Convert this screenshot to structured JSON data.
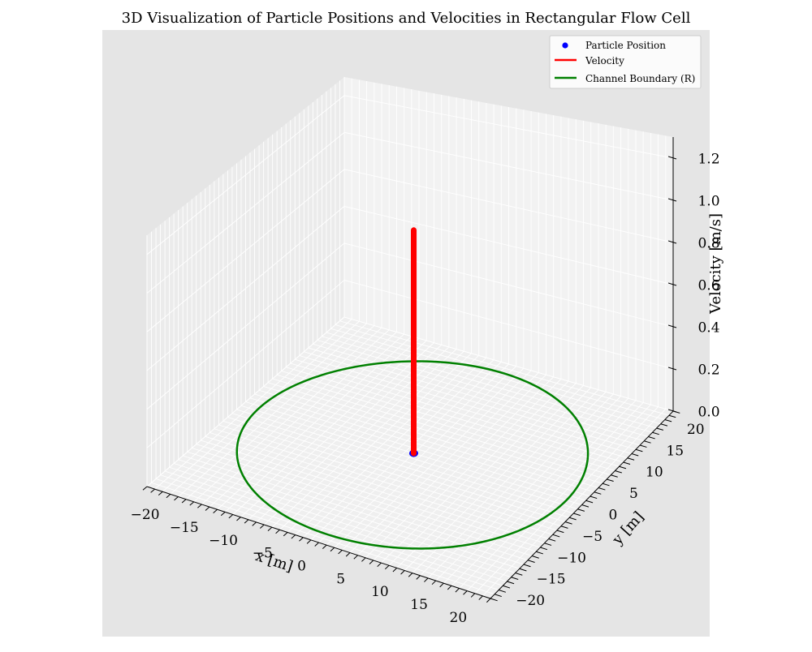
{
  "chart_data": {
    "type": "scatter",
    "projection": "3d",
    "title": "3D Visualization of Particle Positions and Velocities in Rectangular Flow Cell",
    "xlabel": "x [m]",
    "ylabel": "y [m]",
    "zlabel": "Velocity [m/s]",
    "xlim": [
      -22,
      22
    ],
    "ylim": [
      -22,
      22
    ],
    "zlim": [
      0,
      1.3
    ],
    "x_ticks": [
      -20,
      -15,
      -10,
      -5,
      0,
      5,
      10,
      15,
      20
    ],
    "y_ticks": [
      -20,
      -15,
      -10,
      -5,
      0,
      5,
      10,
      15,
      20
    ],
    "z_ticks": [
      0.0,
      0.2,
      0.4,
      0.6,
      0.8,
      1.0,
      1.2
    ],
    "x_tick_labels": [
      "−20",
      "−15",
      "−10",
      "−5",
      "0",
      "5",
      "10",
      "15",
      "20"
    ],
    "y_tick_labels": [
      "−20",
      "−15",
      "−10",
      "−5",
      "0",
      "5",
      "10",
      "15",
      "20"
    ],
    "z_tick_labels": [
      "0.0",
      "0.2",
      "0.4",
      "0.6",
      "0.8",
      "1.0",
      "1.2"
    ],
    "grid": true,
    "legend_position": "top-right",
    "series": [
      {
        "name": "Particle Position",
        "kind": "scatter",
        "color": "#0000ff",
        "points": [
          {
            "x": 0,
            "y": 0,
            "z": 0
          }
        ]
      },
      {
        "name": "Velocity",
        "kind": "line",
        "color": "#ff0000",
        "points": [
          {
            "x": 0,
            "y": 0,
            "z": 0
          },
          {
            "x": 0,
            "y": 0,
            "z": 1.1
          }
        ]
      },
      {
        "name": "Channel Boundary (R)",
        "kind": "line",
        "color": "#008000",
        "shape": "circle",
        "center": [
          0,
          0
        ],
        "radius": 20,
        "z": 0
      }
    ]
  }
}
